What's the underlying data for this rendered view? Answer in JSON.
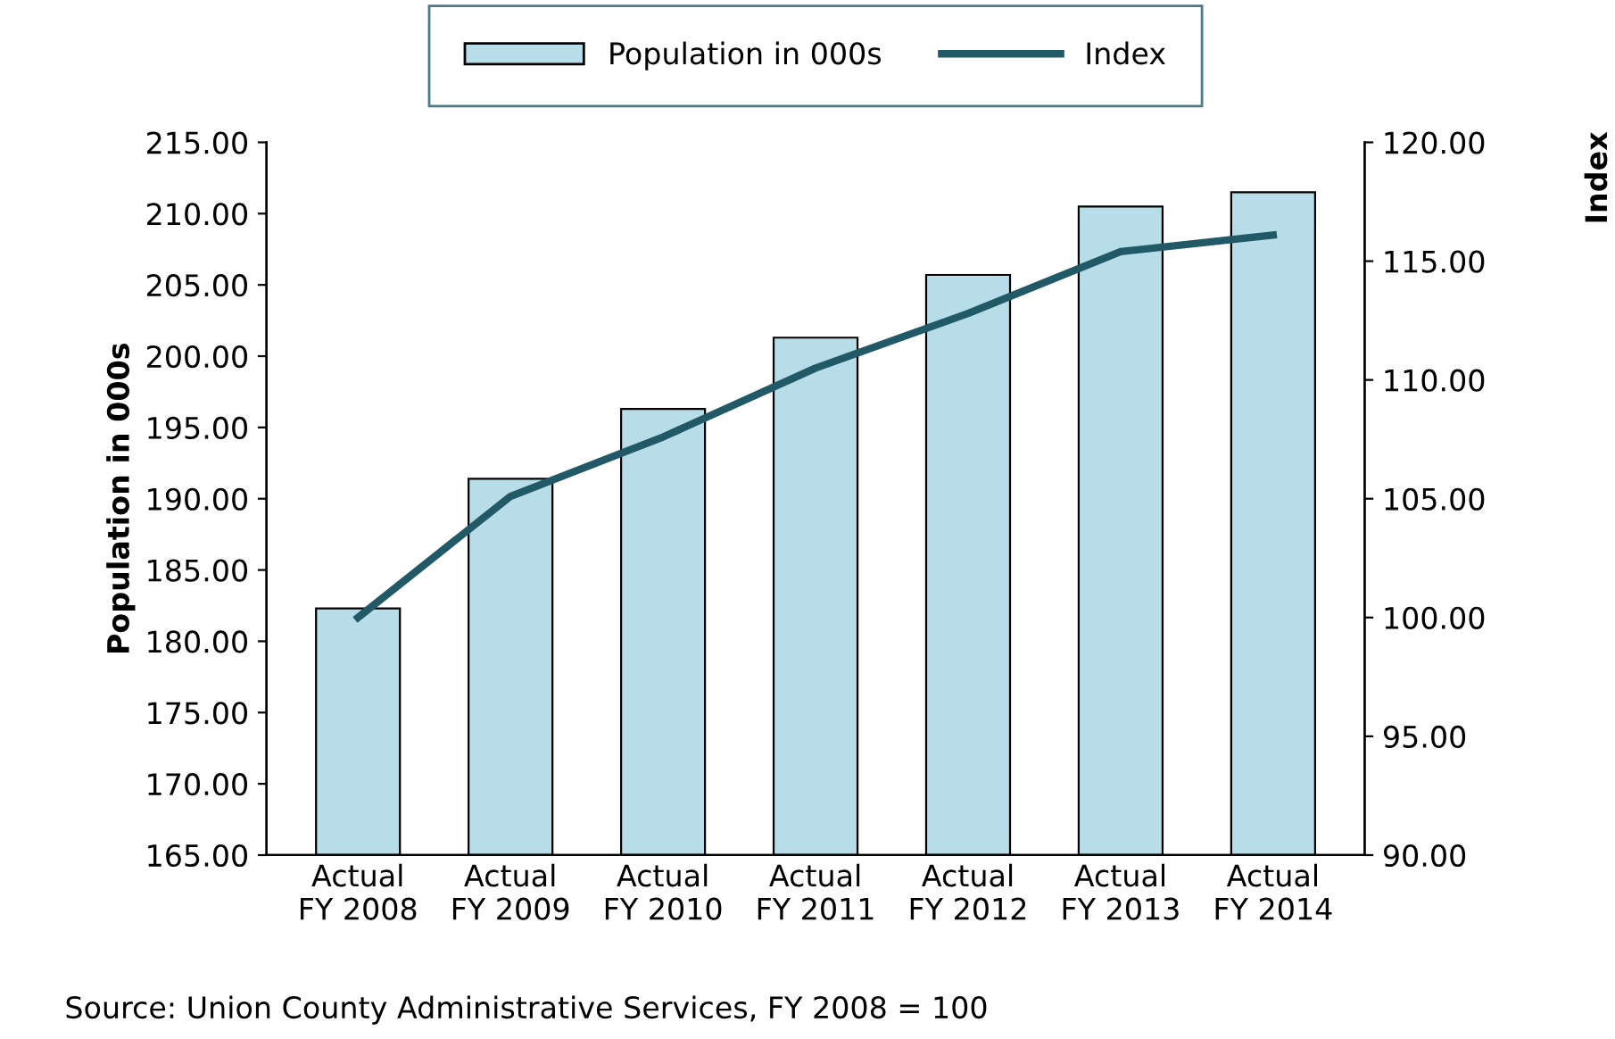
{
  "chart_data": {
    "type": "bar",
    "categories": [
      "Actual\nFY 2008",
      "Actual\nFY 2009",
      "Actual\nFY 2010",
      "Actual\nFY 2011",
      "Actual\nFY 2012",
      "Actual\nFY 2013",
      "Actual\nFY 2014"
    ],
    "series": [
      {
        "name": "Population in 000s",
        "color": "#b7dde8",
        "values": [
          182.3,
          191.4,
          196.3,
          201.3,
          205.7,
          210.5,
          211.5
        ]
      },
      {
        "name": "Index",
        "type": "line",
        "axis": "y2",
        "color": "#215967",
        "values": [
          100.0,
          105.1,
          107.6,
          110.5,
          112.8,
          115.4,
          116.1
        ]
      }
    ],
    "ylabel": "Population in 000s",
    "y2label": "Index",
    "ylim": [
      165,
      215
    ],
    "yticks": [
      {
        "value": 165,
        "label": "165.00"
      },
      {
        "value": 170,
        "label": "170.00"
      },
      {
        "value": 175,
        "label": "175.00"
      },
      {
        "value": 180,
        "label": "180.00"
      },
      {
        "value": 185,
        "label": "185.00"
      },
      {
        "value": 190,
        "label": "190.00"
      },
      {
        "value": 195,
        "label": "195.00"
      },
      {
        "value": 200,
        "label": "200.00"
      },
      {
        "value": 205,
        "label": "205.00"
      },
      {
        "value": 210,
        "label": "210.00"
      },
      {
        "value": 215,
        "label": "215.00"
      }
    ],
    "y2lim": [
      90,
      120
    ],
    "y2ticks": [
      {
        "value": 90,
        "label": "90.00"
      },
      {
        "value": 95,
        "label": "95.00"
      },
      {
        "value": 100,
        "label": "100.00"
      },
      {
        "value": 105,
        "label": "105.00"
      },
      {
        "value": 110,
        "label": "110.00"
      },
      {
        "value": 115,
        "label": "115.00"
      },
      {
        "value": 120,
        "label": "120.00"
      }
    ],
    "legend": "top",
    "grid": false,
    "marker": "none",
    "annotations": [
      "Source: Union County Administrative Services, FY 2008 = 100"
    ]
  }
}
